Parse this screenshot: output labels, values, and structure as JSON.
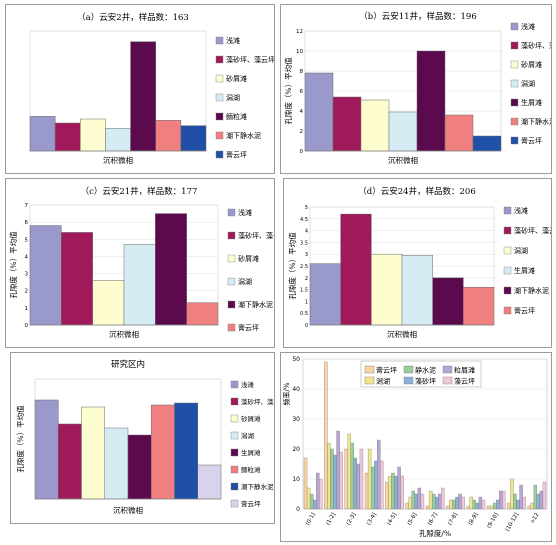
{
  "chart_data": [
    {
      "type": "bar",
      "title": "（a）云安2井，样品数：163",
      "xlabel": "沉积微相",
      "ylabel": "",
      "ylim": [
        0,
        9
      ],
      "yticks": [],
      "categories": [
        "浅滩",
        "藻砂坪、藻云坪",
        "砂屑滩",
        "潟湖",
        "鲕粒滩",
        "潮下静水泥",
        "膏云坪"
      ],
      "values": [
        2.6,
        2.1,
        2.4,
        1.7,
        8.2,
        2.3,
        1.9
      ],
      "colors": [
        "#9999cc",
        "#a0195a",
        "#fdfdd0",
        "#d6ecf5",
        "#5c0a4e",
        "#f08080",
        "#1f4fa6"
      ]
    },
    {
      "type": "bar",
      "title": "（b）云安11井，样品数：196",
      "xlabel": "沉积微相",
      "ylabel": "孔隙度（%）平均值",
      "ylim": [
        0,
        12
      ],
      "yticks": [
        "0",
        "2",
        "4",
        "6",
        "8",
        "10",
        "12"
      ],
      "categories": [
        "浅滩",
        "藻砂坪、藻云坪",
        "砂屑滩",
        "潟湖",
        "生屑滩",
        "潮下静水泥",
        "膏云坪"
      ],
      "values": [
        7.8,
        5.4,
        5.1,
        3.9,
        10.0,
        3.6,
        1.5
      ],
      "colors": [
        "#9999cc",
        "#a0195a",
        "#fdfdd0",
        "#d6ecf5",
        "#5c0a4e",
        "#f08080",
        "#1f4fa6"
      ]
    },
    {
      "type": "bar",
      "title": "（c）云安21井，样品数：177",
      "xlabel": "沉积微相",
      "ylabel": "孔隙度（%）平均值",
      "ylim": [
        0,
        7
      ],
      "yticks": [
        "0",
        "1",
        "2",
        "3",
        "4",
        "5",
        "6",
        "7"
      ],
      "categories": [
        "浅滩",
        "藻砂坪、藻云坪",
        "砂屑滩",
        "潟湖",
        "潮下静水泥",
        "膏云坪"
      ],
      "values": [
        5.8,
        5.4,
        2.6,
        4.7,
        6.5,
        1.3
      ],
      "colors": [
        "#9999cc",
        "#a0195a",
        "#fdfdd0",
        "#d6ecf5",
        "#5c0a4e",
        "#f08080"
      ]
    },
    {
      "type": "bar",
      "title": "（d）云安24井，样品数：206",
      "xlabel": "沉积微相",
      "ylabel": "孔隙度（%）平均值",
      "ylim": [
        0,
        5
      ],
      "yticks": [
        "0",
        "0.5",
        "1",
        "1.5",
        "2",
        "2.5",
        "3",
        "3.5",
        "4",
        "4.5",
        "5"
      ],
      "categories": [
        "浅滩",
        "藻砂坪、藻云坪",
        "潟湖",
        "生屑滩",
        "潮下静水泥",
        "膏云坪"
      ],
      "values": [
        2.6,
        4.7,
        3.0,
        2.95,
        2.0,
        1.6
      ],
      "colors": [
        "#9999cc",
        "#a0195a",
        "#fdfdd0",
        "#d6ecf5",
        "#5c0a4e",
        "#f08080"
      ]
    },
    {
      "type": "bar",
      "title": "研究区内",
      "xlabel": "沉积微相",
      "ylabel": "孔隙度（%）平均值",
      "ylim": [
        0,
        6
      ],
      "yticks": [],
      "categories": [
        "浅滩",
        "藻砂坪、藻云坪",
        "砂屑滩",
        "潟湖",
        "生屑滩",
        "鲕粒滩",
        "潮下静水泥",
        "膏云坪"
      ],
      "values": [
        4.95,
        3.75,
        4.6,
        3.55,
        3.2,
        4.7,
        4.8,
        1.7
      ],
      "colors": [
        "#9999cc",
        "#a0195a",
        "#fdfdd0",
        "#d6ecf5",
        "#5c0a4e",
        "#f08080",
        "#1f4fa6",
        "#d9d2ec"
      ]
    },
    {
      "type": "bar",
      "xlabel": "孔隙度/%",
      "ylabel": "频率/%",
      "ylim": [
        0,
        50
      ],
      "yticks": [
        "0",
        "10",
        "20",
        "30",
        "40",
        "50"
      ],
      "categories": [
        "(0-1]",
        "(1-2]",
        "(2-3]",
        "(3-4]",
        "(4-5]",
        "(5-6]",
        "(6-7]",
        "(7-8]",
        "(8-9]",
        "(9-10]",
        "(10-12]",
        ">12"
      ],
      "series": [
        {
          "name": "膏云坪",
          "color": "#fbd3a4",
          "values": [
            17,
            49,
            20,
            12,
            9,
            2,
            1,
            1,
            1,
            1,
            2,
            1
          ]
        },
        {
          "name": "潟湖",
          "color": "#f0e68c",
          "values": [
            7,
            22,
            25,
            20,
            11,
            4,
            6,
            3,
            4,
            1,
            10,
            2
          ]
        },
        {
          "name": "静水泥",
          "color": "#9acd9a",
          "values": [
            5,
            20,
            22,
            14,
            12,
            6,
            5,
            3,
            3,
            2,
            5,
            8
          ]
        },
        {
          "name": "藻砂坪",
          "color": "#8bb2d6",
          "values": [
            3,
            18,
            17,
            16,
            11,
            5,
            4,
            4,
            2,
            3,
            3,
            5
          ]
        },
        {
          "name": "粒屑滩",
          "color": "#b7a6d4",
          "values": [
            12,
            26,
            15,
            23,
            14,
            7,
            5,
            5,
            4,
            6,
            8,
            6
          ]
        },
        {
          "name": "藻云坪",
          "color": "#f0c8dc",
          "values": [
            10,
            19,
            20,
            16,
            11,
            5,
            7,
            4,
            3,
            6,
            4,
            9
          ]
        }
      ]
    }
  ]
}
